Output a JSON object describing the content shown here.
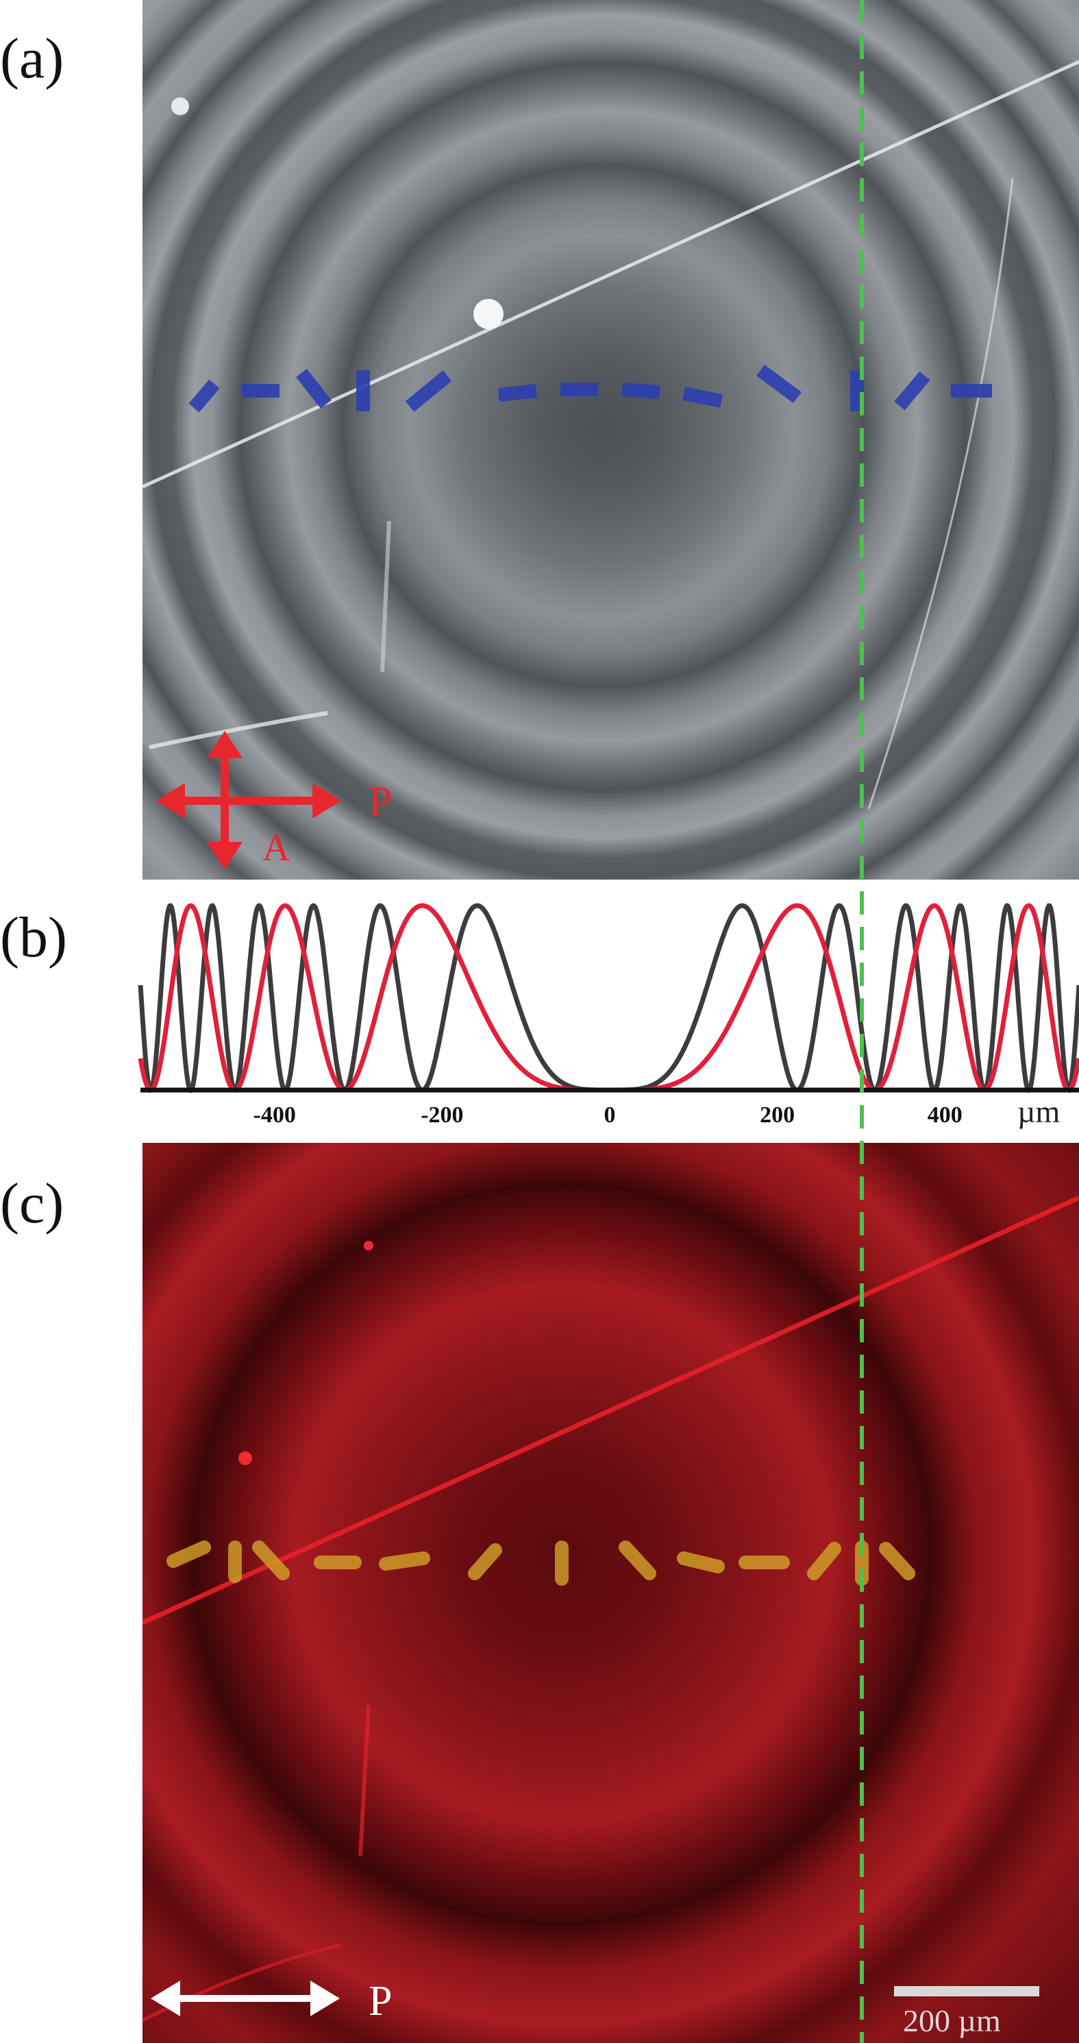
{
  "panels": {
    "a": {
      "label": "(a)",
      "polarizer_label": "P",
      "analyzer_label": "A"
    },
    "b": {
      "label": "(b)"
    },
    "c": {
      "label": "(c)",
      "polarizer_label": "P",
      "scale_bar_label": "200 µm"
    }
  },
  "colors": {
    "guide_line": "#4cc24c",
    "director_blue": "#2c3fb0",
    "director_yellow": "#d4a32a",
    "curve_dark": "#3c3c3c",
    "curve_red": "#e0213a",
    "arrow_red": "#e8262e"
  },
  "chart_data": {
    "type": "line",
    "xlabel": "µm",
    "xlim": [
      -560,
      560
    ],
    "ylim": [
      0,
      1
    ],
    "x_ticks": [
      -400,
      -200,
      0,
      200,
      400
    ],
    "x_tick_labels": [
      "-400",
      "-200",
      "0",
      "200",
      "400"
    ],
    "guide_x": 300,
    "series": [
      {
        "color": "#3c3c3c",
        "k": 2e-05
      },
      {
        "color": "#e0213a",
        "k": 1e-05
      }
    ]
  }
}
